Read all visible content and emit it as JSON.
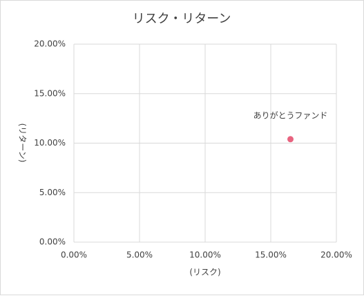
{
  "chart_data": {
    "type": "scatter",
    "title": "リスク・リターン",
    "x_label": "(リスク)",
    "y_label": "(リターン)",
    "series": [
      {
        "name": "ありがとうファンド",
        "color": "#e8637f",
        "x": [
          16.5
        ],
        "y": [
          10.4
        ]
      }
    ],
    "xlim": [
      0,
      20
    ],
    "ylim": [
      0,
      20
    ],
    "xticks": [
      {
        "value": 0,
        "label": "0.00%"
      },
      {
        "value": 5,
        "label": "5.00%"
      },
      {
        "value": 10,
        "label": "10.00%"
      },
      {
        "value": 15,
        "label": "15.00%"
      },
      {
        "value": 20,
        "label": "20.00%"
      }
    ],
    "yticks": [
      {
        "value": 0,
        "label": "0.00%"
      },
      {
        "value": 5,
        "label": "5.00%"
      },
      {
        "value": 10,
        "label": "10.00%"
      },
      {
        "value": 15,
        "label": "15.00%"
      },
      {
        "value": 20,
        "label": "20.00%"
      }
    ],
    "grid": true
  }
}
